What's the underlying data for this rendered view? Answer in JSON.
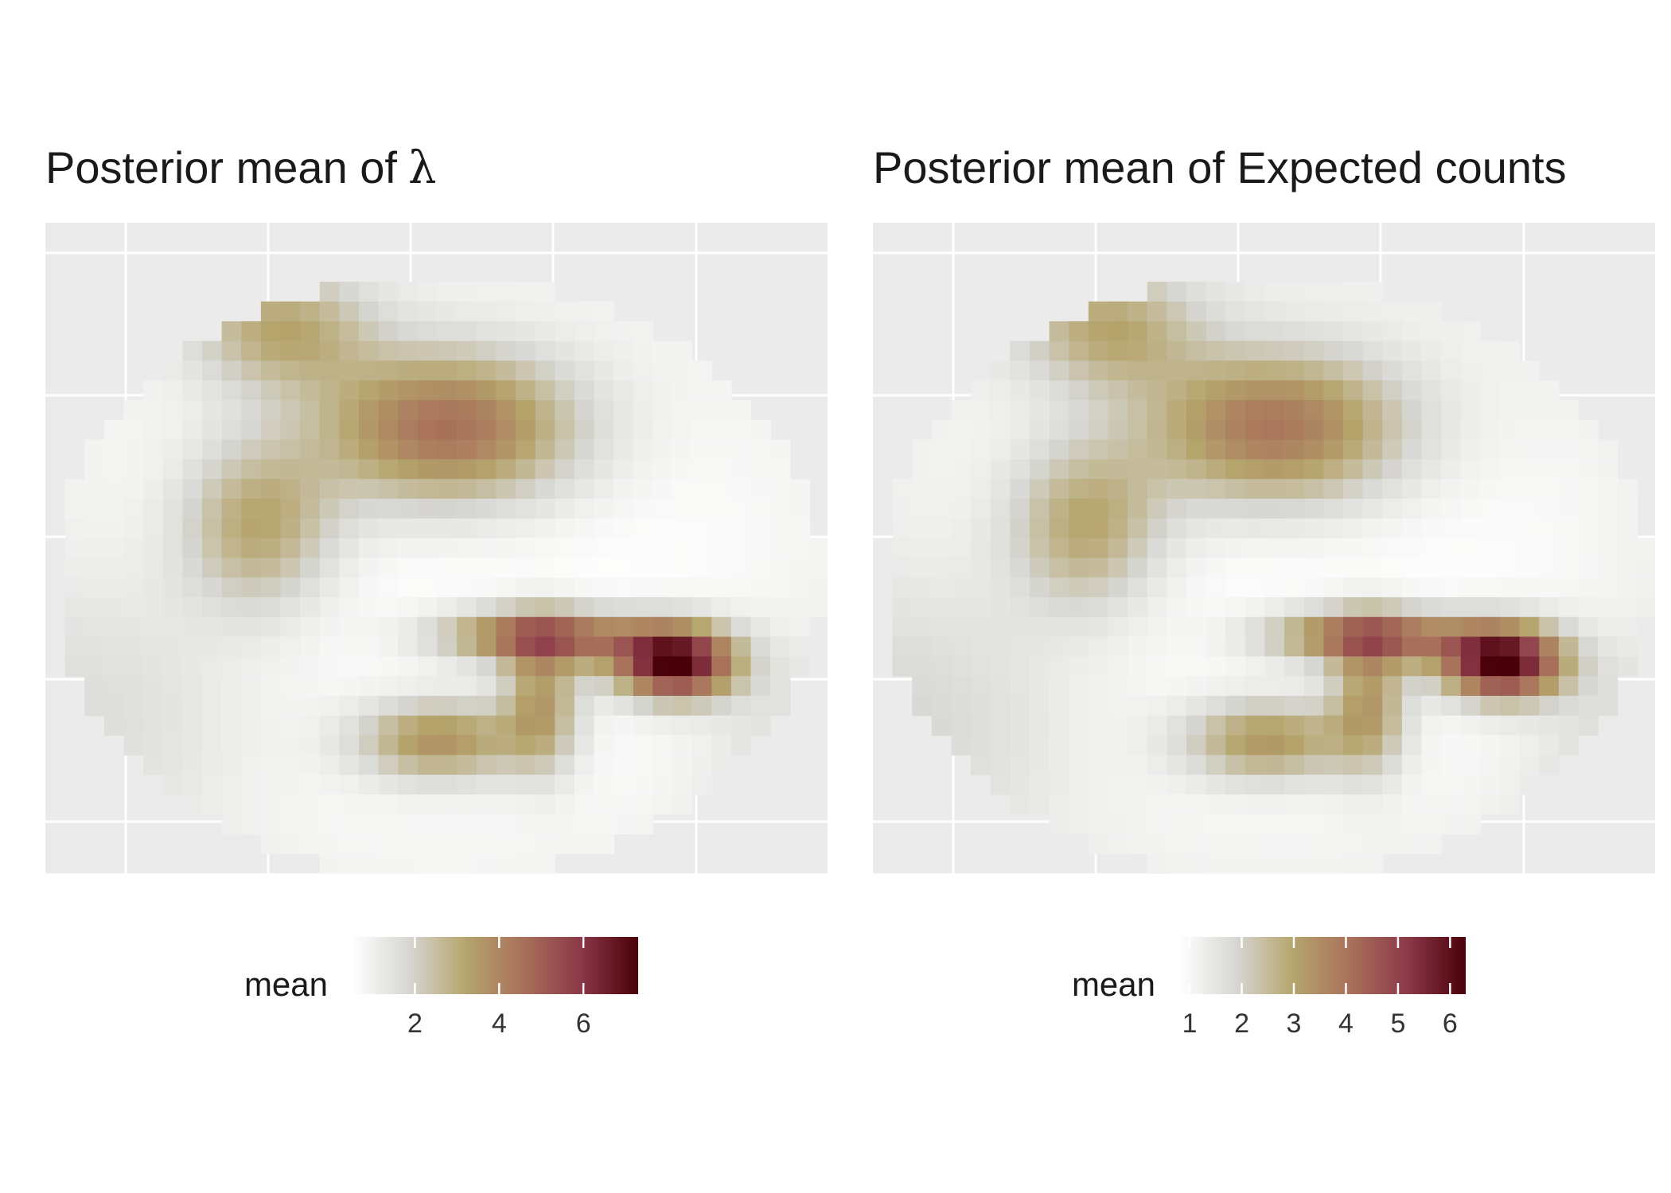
{
  "chart_data": [
    {
      "type": "heatmap",
      "title": "Posterior mean of",
      "title_symbol": "λ",
      "legend_title": "mean",
      "legend_ticks": [
        "2",
        "4",
        "6"
      ],
      "legend_tick_values": [
        2,
        4,
        6
      ],
      "color_range": [
        0.5,
        7.3
      ],
      "legend_placement": "bottom",
      "palette": [
        "#ffffff",
        "#d6d6d2",
        "#b5a46c",
        "#a8705a",
        "#8b3848",
        "#4a0008"
      ],
      "grid": true,
      "axes_text": false,
      "hotspots": [
        {
          "x": 0.79,
          "y": 0.66,
          "peak": 7.2,
          "sx": 0.055,
          "sy": 0.04
        },
        {
          "x": 0.62,
          "y": 0.62,
          "peak": 4.8,
          "sx": 0.09,
          "sy": 0.03
        },
        {
          "x": 0.62,
          "y": 0.72,
          "peak": 3.2,
          "sx": 0.035,
          "sy": 0.075
        },
        {
          "x": 0.5,
          "y": 0.3,
          "peak": 4.5,
          "sx": 0.12,
          "sy": 0.085
        },
        {
          "x": 0.49,
          "y": 0.78,
          "peak": 3.6,
          "sx": 0.075,
          "sy": 0.045
        },
        {
          "x": 0.26,
          "y": 0.45,
          "peak": 3.0,
          "sx": 0.07,
          "sy": 0.09
        },
        {
          "x": 0.29,
          "y": 0.15,
          "peak": 2.8,
          "sx": 0.08,
          "sy": 0.065
        },
        {
          "x": 0.07,
          "y": 0.72,
          "peak": 1.3,
          "sx": 0.15,
          "sy": 0.15
        },
        {
          "x": 0.95,
          "y": 0.82,
          "peak": 1.3,
          "sx": 0.08,
          "sy": 0.12
        }
      ]
    },
    {
      "type": "heatmap",
      "title": "Posterior mean of Expected counts",
      "legend_title": "mean",
      "legend_ticks": [
        "1",
        "2",
        "3",
        "4",
        "5",
        "6"
      ],
      "legend_tick_values": [
        1,
        2,
        3,
        4,
        5,
        6
      ],
      "color_range": [
        0.8,
        6.3
      ],
      "legend_placement": "bottom",
      "palette": [
        "#ffffff",
        "#d6d6d2",
        "#b5a46c",
        "#a8705a",
        "#8b3848",
        "#4a0008"
      ],
      "grid": true,
      "axes_text": false,
      "hotspots": [
        {
          "x": 0.79,
          "y": 0.66,
          "peak": 6.2,
          "sx": 0.055,
          "sy": 0.04
        },
        {
          "x": 0.62,
          "y": 0.62,
          "peak": 4.2,
          "sx": 0.09,
          "sy": 0.03
        },
        {
          "x": 0.62,
          "y": 0.72,
          "peak": 3.0,
          "sx": 0.035,
          "sy": 0.075
        },
        {
          "x": 0.5,
          "y": 0.3,
          "peak": 3.9,
          "sx": 0.12,
          "sy": 0.085
        },
        {
          "x": 0.49,
          "y": 0.78,
          "peak": 3.2,
          "sx": 0.075,
          "sy": 0.045
        },
        {
          "x": 0.26,
          "y": 0.45,
          "peak": 2.8,
          "sx": 0.07,
          "sy": 0.09
        },
        {
          "x": 0.29,
          "y": 0.15,
          "peak": 2.6,
          "sx": 0.08,
          "sy": 0.065
        },
        {
          "x": 0.07,
          "y": 0.72,
          "peak": 1.5,
          "sx": 0.15,
          "sy": 0.15
        },
        {
          "x": 0.95,
          "y": 0.82,
          "peak": 1.5,
          "sx": 0.08,
          "sy": 0.12
        }
      ]
    }
  ]
}
